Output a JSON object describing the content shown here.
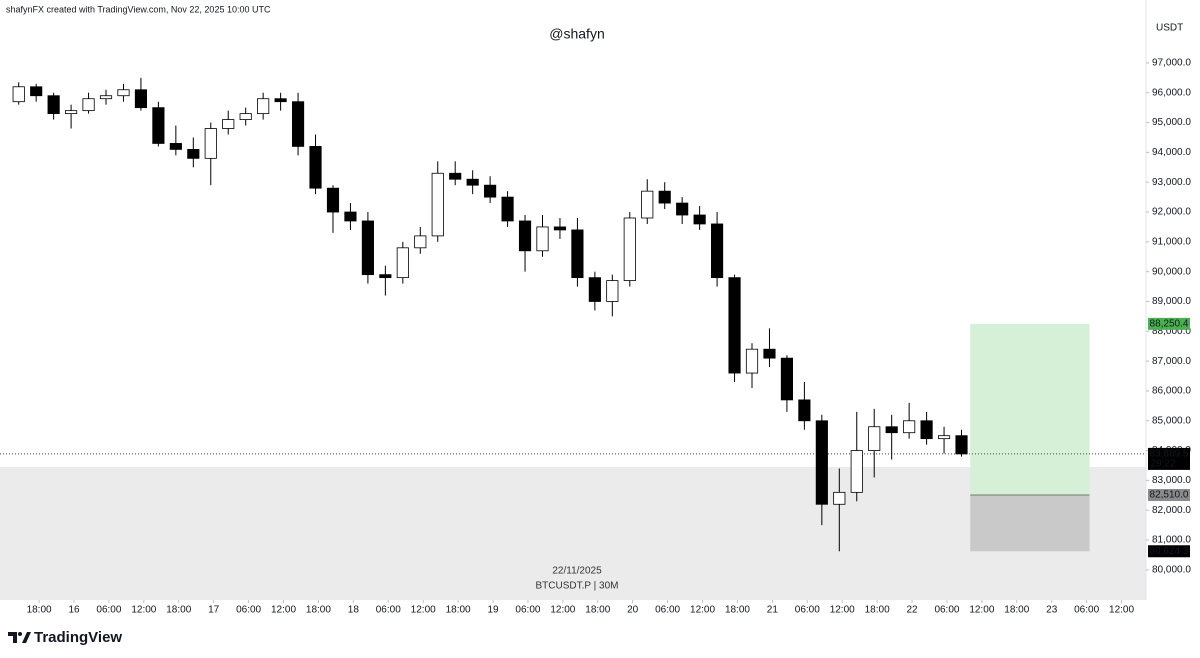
{
  "header": "shafynFX created with TradingView.com, Nov 22, 2025 10:00 UTC",
  "footer": {
    "logo_text": "TradingView"
  },
  "chart_data": {
    "type": "candlestick",
    "title": "@shafyn",
    "currency": "USDT",
    "watermark": [
      "22/11/2025",
      "BTCUSDT.P | 30M"
    ],
    "up_color": "#ffffff",
    "down_color": "#000000",
    "wick_color": "#000000",
    "grid": false,
    "x": [
      "15 13:00",
      "15 16:00",
      "15 19:00",
      "15 22:00",
      "16 01:00",
      "16 04:00",
      "16 07:00",
      "16 10:00",
      "16 13:00",
      "16 16:00",
      "16 19:00",
      "16 22:00",
      "17 01:00",
      "17 04:00",
      "17 07:00",
      "17 10:00",
      "17 13:00",
      "17 16:00",
      "17 19:00",
      "17 22:00",
      "18 01:00",
      "18 04:00",
      "18 07:00",
      "18 10:00",
      "18 13:00",
      "18 16:00",
      "18 19:00",
      "18 22:00",
      "19 01:00",
      "19 04:00",
      "19 07:00",
      "19 10:00",
      "19 13:00",
      "19 16:00",
      "19 19:00",
      "19 22:00",
      "20 01:00",
      "20 04:00",
      "20 07:00",
      "20 10:00",
      "20 13:00",
      "20 16:00",
      "20 19:00",
      "20 22:00",
      "21 01:00",
      "21 04:00",
      "21 07:00",
      "21 10:00",
      "21 13:00",
      "21 16:00",
      "21 19:00",
      "21 22:00",
      "22 01:00",
      "22 04:00",
      "22 07:00"
    ],
    "open": [
      95700,
      96200,
      95900,
      95300,
      95400,
      95800,
      95900,
      96100,
      95500,
      94300,
      94100,
      93800,
      94800,
      95100,
      95300,
      95800,
      95700,
      94200,
      92800,
      92000,
      91700,
      89900,
      89800,
      90800,
      91200,
      93300,
      93100,
      92900,
      92500,
      91700,
      90700,
      91500,
      91400,
      89800,
      89000,
      89700,
      91800,
      92700,
      92300,
      91900,
      91600,
      89800,
      86600,
      87400,
      87100,
      85700,
      85000,
      82200,
      82600,
      84000,
      84800,
      84600,
      85000,
      84400,
      84500
    ],
    "high": [
      96350,
      96300,
      96000,
      95600,
      96000,
      96100,
      96300,
      96500,
      95700,
      94900,
      94500,
      95000,
      95400,
      95500,
      96000,
      96000,
      96000,
      94600,
      92900,
      92300,
      92000,
      90200,
      91000,
      91500,
      93700,
      93700,
      93400,
      93200,
      92700,
      91900,
      91900,
      91800,
      91800,
      90000,
      89900,
      92000,
      93100,
      93000,
      92500,
      92200,
      92000,
      89900,
      87600,
      88100,
      87200,
      86300,
      85200,
      83400,
      85300,
      85400,
      85200,
      85600,
      85300,
      84800,
      84700
    ],
    "low": [
      95600,
      95700,
      95100,
      94800,
      95300,
      95600,
      95700,
      95400,
      94200,
      93900,
      93500,
      92900,
      94600,
      94900,
      95100,
      95400,
      93900,
      92600,
      91300,
      91400,
      89600,
      89200,
      89600,
      90600,
      91000,
      92900,
      92600,
      92300,
      91500,
      90000,
      90500,
      91100,
      89500,
      88700,
      88500,
      89500,
      91600,
      92100,
      91600,
      91400,
      89500,
      86300,
      86100,
      86800,
      85300,
      84700,
      81500,
      80624,
      82300,
      83100,
      83700,
      84400,
      84200,
      83900,
      83800
    ],
    "close": [
      96200,
      95900,
      95300,
      95400,
      95800,
      95900,
      96100,
      95500,
      94300,
      94100,
      93800,
      94800,
      95100,
      95300,
      95800,
      95700,
      94200,
      92800,
      92000,
      91700,
      89900,
      89800,
      90800,
      91200,
      93300,
      93100,
      92900,
      92500,
      91700,
      90700,
      91500,
      91400,
      89800,
      89000,
      89700,
      91800,
      92700,
      92300,
      91900,
      91600,
      89800,
      86600,
      87400,
      87100,
      85700,
      85000,
      82200,
      82600,
      84000,
      84800,
      84600,
      85000,
      84400,
      84500,
      83889.5
    ],
    "xlim": [
      "15 11:17",
      "23 16:12"
    ],
    "xticks": [
      {
        "value": "15 18:00",
        "label": "18:00"
      },
      {
        "value": "16 00:00",
        "label": "16"
      },
      {
        "value": "16 06:00",
        "label": "06:00"
      },
      {
        "value": "16 12:00",
        "label": "12:00"
      },
      {
        "value": "16 18:00",
        "label": "18:00"
      },
      {
        "value": "17 00:00",
        "label": "17"
      },
      {
        "value": "17 06:00",
        "label": "06:00"
      },
      {
        "value": "17 12:00",
        "label": "12:00"
      },
      {
        "value": "17 18:00",
        "label": "18:00"
      },
      {
        "value": "18 00:00",
        "label": "18"
      },
      {
        "value": "18 06:00",
        "label": "06:00"
      },
      {
        "value": "18 12:00",
        "label": "12:00"
      },
      {
        "value": "18 18:00",
        "label": "18:00"
      },
      {
        "value": "19 00:00",
        "label": "19"
      },
      {
        "value": "19 06:00",
        "label": "06:00"
      },
      {
        "value": "19 12:00",
        "label": "12:00"
      },
      {
        "value": "19 18:00",
        "label": "18:00"
      },
      {
        "value": "20 00:00",
        "label": "20"
      },
      {
        "value": "20 06:00",
        "label": "06:00"
      },
      {
        "value": "20 12:00",
        "label": "12:00"
      },
      {
        "value": "20 18:00",
        "label": "18:00"
      },
      {
        "value": "21 00:00",
        "label": "21"
      },
      {
        "value": "21 06:00",
        "label": "06:00"
      },
      {
        "value": "21 12:00",
        "label": "12:00"
      },
      {
        "value": "21 18:00",
        "label": "18:00"
      },
      {
        "value": "22 00:00",
        "label": "22"
      },
      {
        "value": "22 06:00",
        "label": "06:00"
      },
      {
        "value": "22 12:00",
        "label": "12:00"
      },
      {
        "value": "22 18:00",
        "label": "18:00"
      },
      {
        "value": "23 00:00",
        "label": "23"
      },
      {
        "value": "23 06:00",
        "label": "06:00"
      },
      {
        "value": "23 12:00",
        "label": "12:00"
      }
    ],
    "ylim": [
      78990,
      99110
    ],
    "yticks": [
      {
        "value": 80000,
        "label": "80,000.0"
      },
      {
        "value": 81000,
        "label": "81,000.0"
      },
      {
        "value": 82000,
        "label": "82,000.0"
      },
      {
        "value": 83000,
        "label": "83,000.0"
      },
      {
        "value": 84000,
        "label": "84,000.0"
      },
      {
        "value": 85000,
        "label": "85,000.0"
      },
      {
        "value": 86000,
        "label": "86,000.0"
      },
      {
        "value": 87000,
        "label": "87,000.0"
      },
      {
        "value": 88000,
        "label": "88,000.0"
      },
      {
        "value": 89000,
        "label": "89,000.0"
      },
      {
        "value": 90000,
        "label": "90,000.0"
      },
      {
        "value": 91000,
        "label": "91,000.0"
      },
      {
        "value": 92000,
        "label": "92,000.0"
      },
      {
        "value": 93000,
        "label": "93,000.0"
      },
      {
        "value": 94000,
        "label": "94,000.0"
      },
      {
        "value": 95000,
        "label": "95,000.0"
      },
      {
        "value": 96000,
        "label": "96,000.0"
      },
      {
        "value": 97000,
        "label": "97,000.0"
      }
    ],
    "zone": {
      "top": 83450,
      "color": "#ebebeb"
    },
    "position": {
      "start": "22 10:00",
      "end": "23 06:30",
      "values": [
        88250.4,
        82510.0,
        80624.3
      ],
      "value_labels": [
        "88,250.4",
        "82,510.0",
        "80,624.3"
      ],
      "colors": [
        "#d5f0d6",
        "#c9c9c9"
      ],
      "label_colors": [
        "#4caf50",
        "#8a8a8a",
        "#000000"
      ]
    },
    "last_price": {
      "value": 83889.5,
      "label": "83,889.5",
      "countdown": "29:22"
    }
  }
}
